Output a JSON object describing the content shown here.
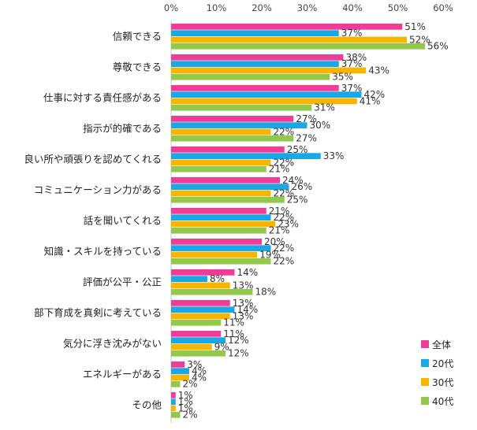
{
  "chart_data": {
    "type": "bar",
    "orientation": "horizontal",
    "xlim": [
      0,
      60
    ],
    "x_ticks": [
      "0%",
      "10%",
      "20%",
      "30%",
      "40%",
      "50%",
      "60%"
    ],
    "x_tick_values": [
      0,
      10,
      20,
      30,
      40,
      50,
      60
    ],
    "categories": [
      "信頼できる",
      "尊敬できる",
      "仕事に対する責任感がある",
      "指示が的確である",
      "良い所や頑張りを認めてくれる",
      "コミュニケーション力がある",
      "話を聞いてくれる",
      "知識・スキルを持っている",
      "評価が公平・公正",
      "部下育成を真剣に考えている",
      "気分に浮き沈みがない",
      "エネルギーがある",
      "その他"
    ],
    "series": [
      {
        "name": "全体",
        "color": "#f03c96",
        "values": [
          51,
          38,
          37,
          27,
          25,
          24,
          21,
          20,
          14,
          13,
          11,
          3,
          1
        ]
      },
      {
        "name": "20代",
        "color": "#1aa7e6",
        "values": [
          37,
          37,
          42,
          30,
          33,
          26,
          22,
          22,
          8,
          14,
          12,
          4,
          1
        ]
      },
      {
        "name": "30代",
        "color": "#f7b500",
        "values": [
          52,
          43,
          41,
          22,
          22,
          22,
          23,
          19,
          13,
          13,
          9,
          4,
          1
        ]
      },
      {
        "name": "40代",
        "color": "#92c94c",
        "values": [
          56,
          35,
          31,
          27,
          21,
          25,
          21,
          22,
          18,
          11,
          12,
          2,
          2
        ]
      }
    ],
    "legend_position": "bottom-right",
    "grid": false,
    "value_suffix": "%"
  }
}
